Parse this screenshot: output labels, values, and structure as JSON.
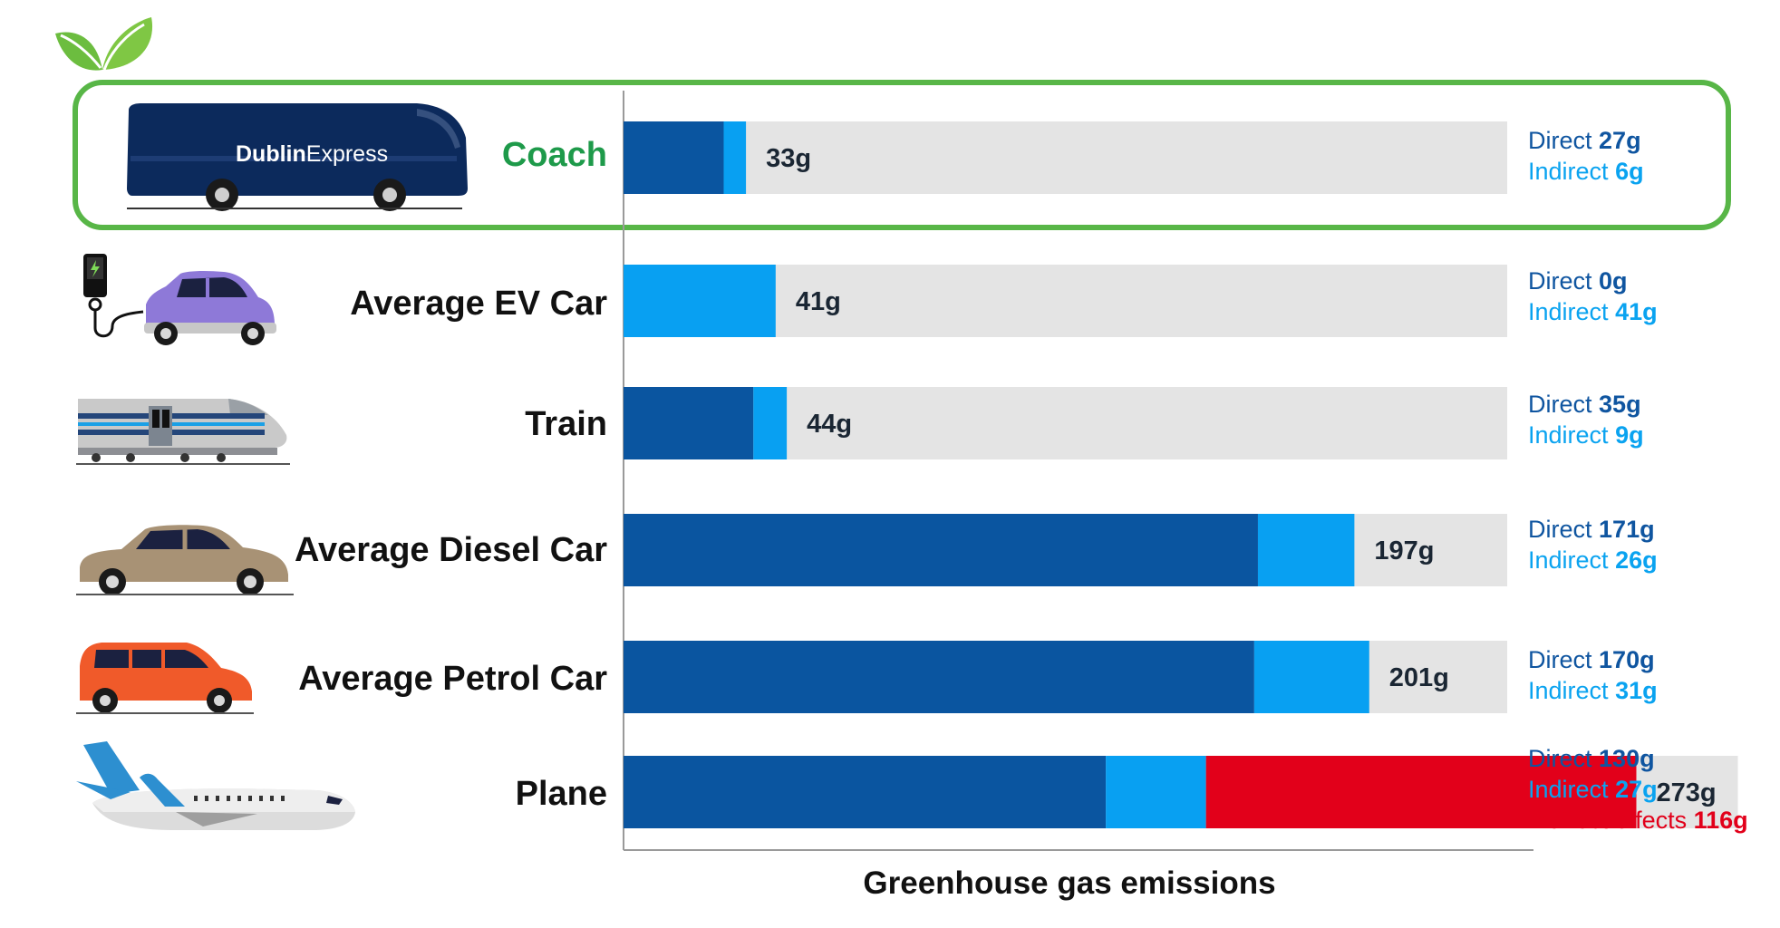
{
  "colors": {
    "direct": "#0a55a0",
    "indirect": "#08a0f2",
    "indirect_effects": "#e2001a",
    "track": "#e4e4e4",
    "highlight": "#58b647",
    "coach_label": "#1e9a4a"
  },
  "icons": [
    "leaf-icon",
    "coach-icon",
    "ev-car-icon",
    "ev-charger-icon",
    "train-icon",
    "diesel-car-icon",
    "petrol-car-icon",
    "plane-icon"
  ],
  "bus_brand": {
    "bold": "Dublin",
    "light": "Express"
  },
  "chart_data": {
    "type": "bar",
    "orientation": "horizontal",
    "stacked": true,
    "xlabel": "Greenhouse gas emissions",
    "xlim": [
      0,
      300
    ],
    "grid": false,
    "highlight_category": "Coach",
    "categories": [
      "Coach",
      "Average EV Car",
      "Train",
      "Average Diesel Car",
      "Average Petrol Car",
      "Plane"
    ],
    "totals": [
      "33g",
      "41g",
      "44g",
      "197g",
      "201g",
      "273g"
    ],
    "series": [
      {
        "name": "Direct",
        "values": [
          27,
          0,
          35,
          171,
          170,
          130
        ]
      },
      {
        "name": "Indirect",
        "values": [
          6,
          41,
          9,
          26,
          31,
          27
        ]
      },
      {
        "name": "Indirect effects",
        "values": [
          0,
          0,
          0,
          0,
          0,
          116
        ]
      }
    ],
    "legend_rows": [
      {
        "direct": "27g",
        "indirect": "6g"
      },
      {
        "direct": "0g",
        "indirect": "41g"
      },
      {
        "direct": "35g",
        "indirect": "9g"
      },
      {
        "direct": "171g",
        "indirect": "26g"
      },
      {
        "direct": "170g",
        "indirect": "31g"
      },
      {
        "direct": "130g",
        "indirect": "27g",
        "effects": "116g"
      }
    ],
    "legend_words": {
      "direct": "Direct",
      "indirect": "Indirect",
      "effects": "Indirect effects"
    }
  }
}
